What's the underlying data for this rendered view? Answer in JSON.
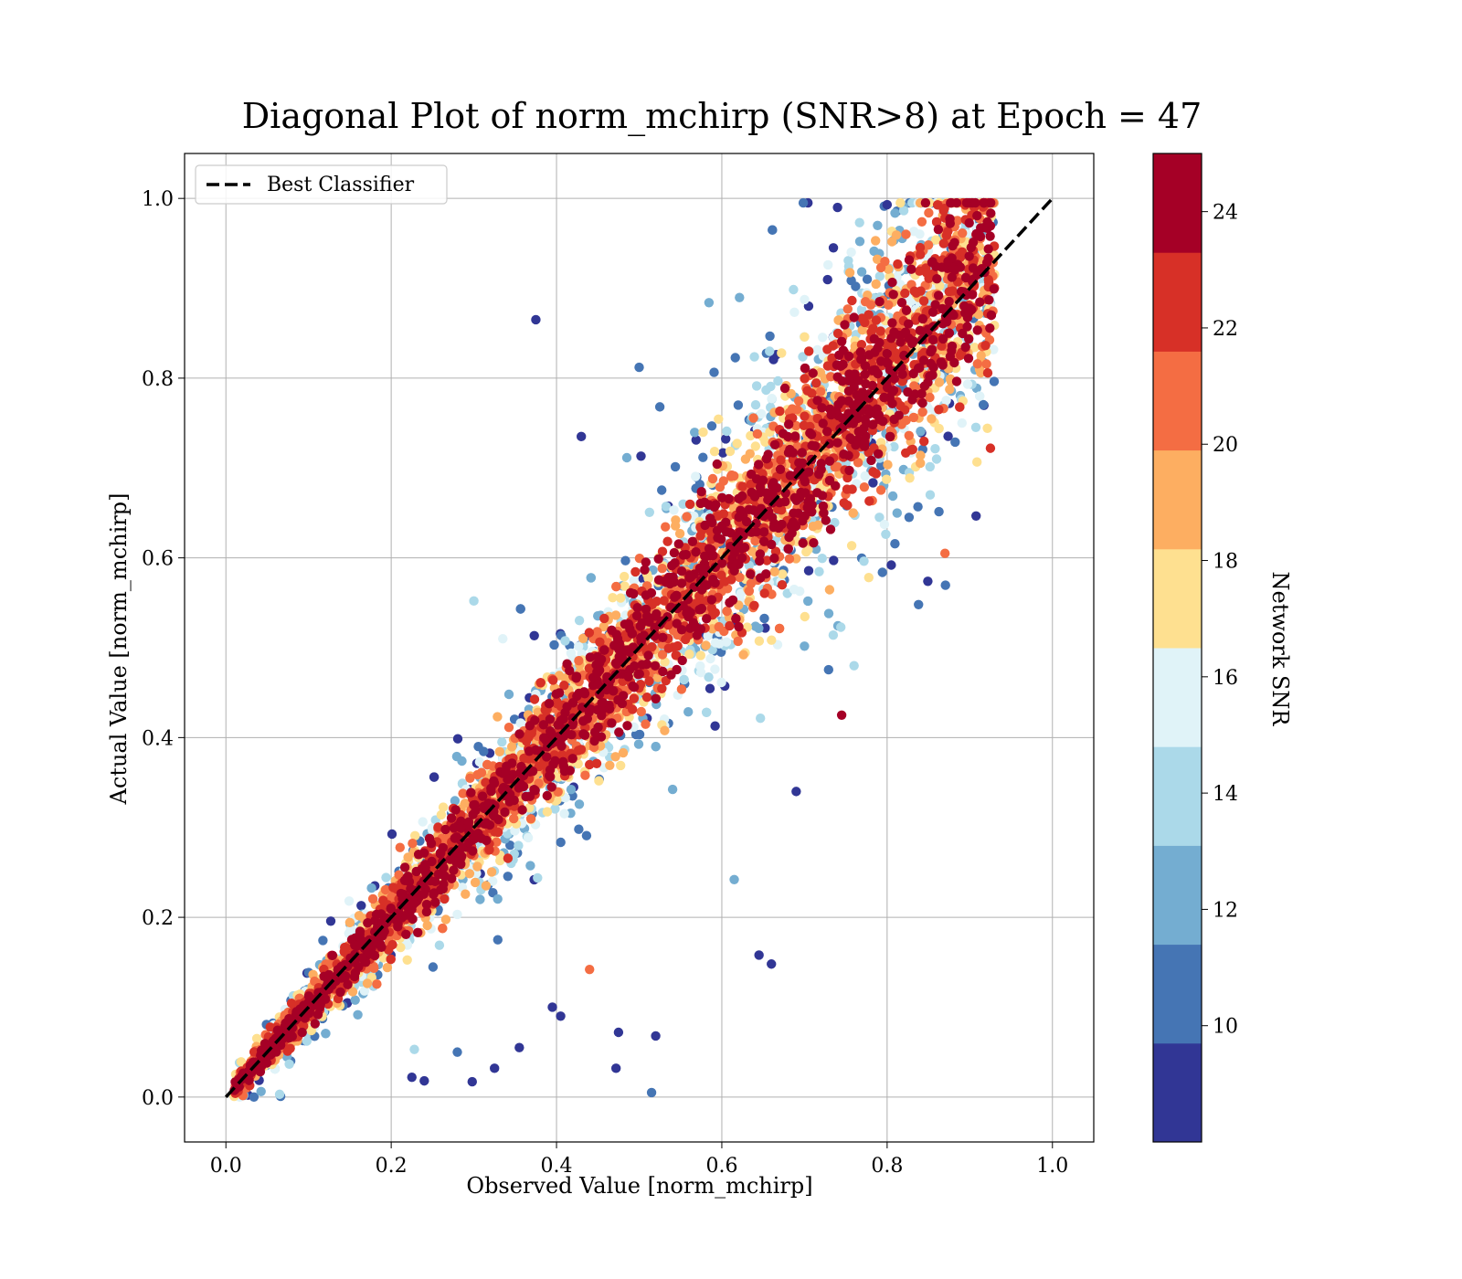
{
  "chart_data": {
    "type": "scatter",
    "title": "Diagonal Plot of norm_mchirp (SNR>8) at Epoch = 47",
    "xlabel": "Observed Value [norm_mchirp]",
    "ylabel": "Actual Value [norm_mchirp]",
    "xlim": [
      -0.05,
      1.05
    ],
    "ylim": [
      -0.05,
      1.05
    ],
    "xticks": [
      "0.0",
      "0.2",
      "0.4",
      "0.6",
      "0.8",
      "1.0"
    ],
    "yticks": [
      "0.0",
      "0.2",
      "0.4",
      "0.6",
      "0.8",
      "1.0"
    ],
    "grid": true,
    "legend": {
      "placement": "top-left",
      "entries": [
        "Best Classifier"
      ]
    },
    "reference_line": {
      "name": "Best Classifier",
      "x": [
        0.0,
        1.0
      ],
      "y": [
        0.0,
        1.0
      ],
      "style": "dashed",
      "color": "#000000"
    },
    "colorbar": {
      "label": "Network SNR",
      "range": [
        8,
        25
      ],
      "ticks": [
        "10",
        "12",
        "14",
        "16",
        "18",
        "20",
        "22",
        "24"
      ],
      "tick_values": [
        10,
        12,
        14,
        16,
        18,
        20,
        22,
        24
      ],
      "colors": [
        "#313695",
        "#4575b4",
        "#74add1",
        "#abd9e9",
        "#e0f3f8",
        "#fee090",
        "#fdae61",
        "#f46d43",
        "#d73027",
        "#a50026"
      ]
    },
    "outliers": [
      {
        "x": 0.375,
        "y": 0.865,
        "snr": 9
      },
      {
        "x": 0.5,
        "y": 0.812,
        "snr": 10
      },
      {
        "x": 0.43,
        "y": 0.735,
        "snr": 9
      },
      {
        "x": 0.525,
        "y": 0.768,
        "snr": 11
      },
      {
        "x": 0.395,
        "y": 0.1,
        "snr": 9
      },
      {
        "x": 0.405,
        "y": 0.09,
        "snr": 9
      },
      {
        "x": 0.475,
        "y": 0.072,
        "snr": 9
      },
      {
        "x": 0.52,
        "y": 0.068,
        "snr": 9
      },
      {
        "x": 0.515,
        "y": 0.005,
        "snr": 11
      },
      {
        "x": 0.44,
        "y": 0.142,
        "snr": 20
      },
      {
        "x": 0.645,
        "y": 0.158,
        "snr": 9
      },
      {
        "x": 0.66,
        "y": 0.148,
        "snr": 9
      },
      {
        "x": 0.472,
        "y": 0.032,
        "snr": 9
      },
      {
        "x": 0.298,
        "y": 0.017,
        "snr": 9
      },
      {
        "x": 0.225,
        "y": 0.022,
        "snr": 9
      },
      {
        "x": 0.24,
        "y": 0.018,
        "snr": 9
      },
      {
        "x": 0.065,
        "y": 0.003,
        "snr": 14
      },
      {
        "x": 0.228,
        "y": 0.053,
        "snr": 14
      },
      {
        "x": 0.28,
        "y": 0.05,
        "snr": 11
      },
      {
        "x": 0.325,
        "y": 0.032,
        "snr": 9
      },
      {
        "x": 0.355,
        "y": 0.055,
        "snr": 9
      },
      {
        "x": 0.3,
        "y": 0.552,
        "snr": 14
      },
      {
        "x": 0.335,
        "y": 0.51,
        "snr": 16
      },
      {
        "x": 0.745,
        "y": 0.425,
        "snr": 24
      },
      {
        "x": 0.615,
        "y": 0.242,
        "snr": 12
      },
      {
        "x": 0.805,
        "y": 0.592,
        "snr": 9
      },
      {
        "x": 0.838,
        "y": 0.548,
        "snr": 11
      },
      {
        "x": 0.87,
        "y": 0.605,
        "snr": 20
      },
      {
        "x": 0.925,
        "y": 0.722,
        "snr": 22
      },
      {
        "x": 0.76,
        "y": 0.48,
        "snr": 14
      },
      {
        "x": 0.69,
        "y": 0.34,
        "snr": 9
      },
      {
        "x": 0.735,
        "y": 0.945,
        "snr": 9
      },
      {
        "x": 0.8,
        "y": 0.993,
        "snr": 9
      },
      {
        "x": 0.74,
        "y": 0.99,
        "snr": 9
      }
    ]
  }
}
